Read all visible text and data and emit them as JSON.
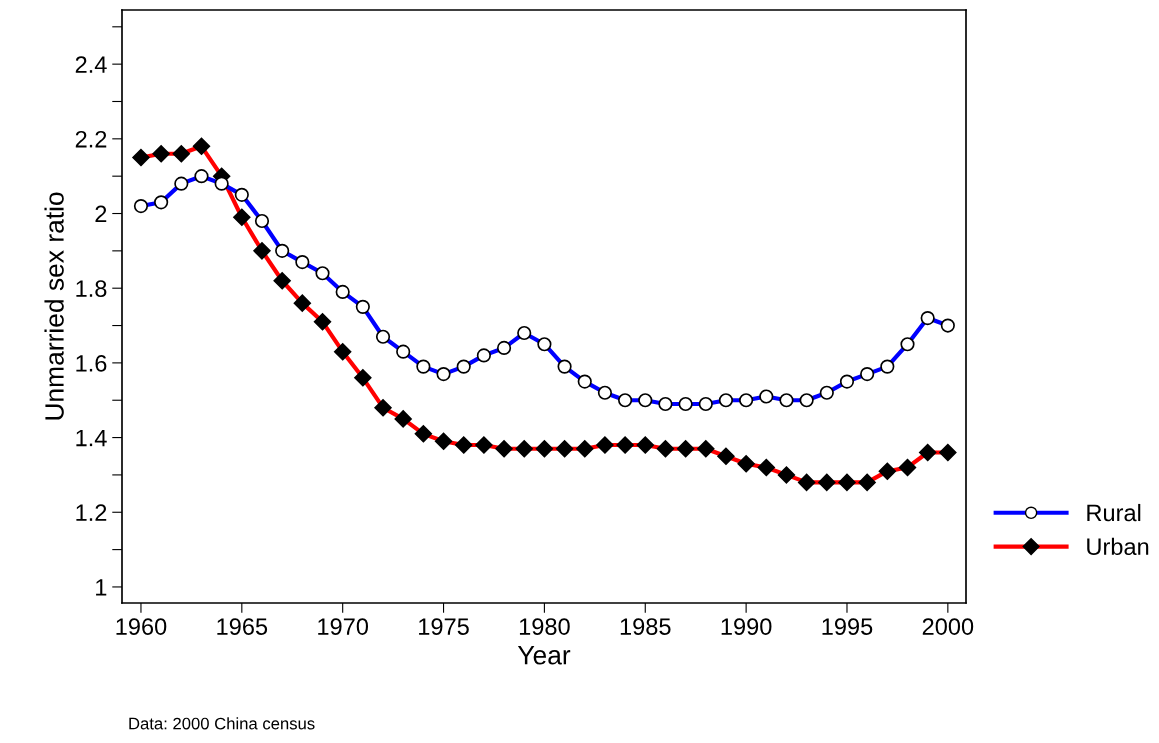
{
  "chart_data": {
    "type": "line",
    "xlabel": "Year",
    "ylabel": "Unmarried sex ratio",
    "annotations": [
      "Data: 2000 China census"
    ],
    "x": [
      1960,
      1961,
      1962,
      1963,
      1964,
      1965,
      1966,
      1967,
      1968,
      1969,
      1970,
      1971,
      1972,
      1973,
      1974,
      1975,
      1976,
      1977,
      1978,
      1979,
      1980,
      1981,
      1982,
      1983,
      1984,
      1985,
      1986,
      1987,
      1988,
      1989,
      1990,
      1991,
      1992,
      1993,
      1994,
      1995,
      1996,
      1997,
      1998,
      1999,
      2000
    ],
    "series": [
      {
        "name": "Rural",
        "color": "#0000ff",
        "marker": "circle",
        "values": [
          2.02,
          2.03,
          2.08,
          2.1,
          2.08,
          2.05,
          1.98,
          1.9,
          1.87,
          1.84,
          1.79,
          1.75,
          1.67,
          1.63,
          1.59,
          1.57,
          1.59,
          1.62,
          1.64,
          1.68,
          1.65,
          1.59,
          1.55,
          1.52,
          1.5,
          1.5,
          1.49,
          1.49,
          1.49,
          1.5,
          1.5,
          1.51,
          1.5,
          1.5,
          1.52,
          1.55,
          1.57,
          1.59,
          1.65,
          1.72,
          1.7
        ]
      },
      {
        "name": "Urban",
        "color": "#ff0000",
        "marker": "diamond",
        "values": [
          2.15,
          2.16,
          2.16,
          2.18,
          2.1,
          1.99,
          1.9,
          1.82,
          1.76,
          1.71,
          1.63,
          1.56,
          1.48,
          1.45,
          1.41,
          1.39,
          1.38,
          1.38,
          1.37,
          1.37,
          1.37,
          1.37,
          1.37,
          1.38,
          1.38,
          1.38,
          1.37,
          1.37,
          1.37,
          1.35,
          1.33,
          1.32,
          1.3,
          1.28,
          1.28,
          1.28,
          1.28,
          1.31,
          1.32,
          1.36,
          1.36
        ]
      }
    ],
    "xlim": [
      1959.06,
      2000.9
    ],
    "ylim": [
      0.957,
      2.545
    ],
    "xticks": [
      1960,
      1965,
      1970,
      1975,
      1980,
      1985,
      1990,
      1995,
      2000
    ],
    "yticks": [
      1,
      {
        "value": 1.1,
        "label": null
      },
      1.2,
      {
        "value": 1.3,
        "label": null
      },
      1.4,
      {
        "value": 1.5,
        "label": null
      },
      1.6,
      {
        "value": 1.7,
        "label": null
      },
      1.8,
      {
        "value": 1.9,
        "label": null
      },
      2,
      {
        "value": 2.1,
        "label": null
      },
      2.2,
      {
        "value": 2.3,
        "label": null
      },
      2.4,
      {
        "value": 2.5,
        "label": null
      }
    ],
    "grid": false,
    "legend": "right",
    "line_style": "solid"
  }
}
